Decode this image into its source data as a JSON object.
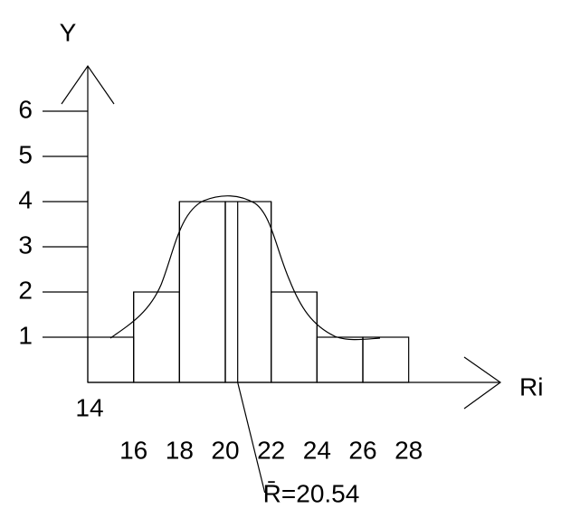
{
  "chart_data": {
    "type": "histogram",
    "bins": [
      14,
      16,
      18,
      20,
      22,
      24,
      26,
      28
    ],
    "values": [
      1,
      2,
      4,
      4,
      2,
      1,
      1
    ],
    "xlim": [
      14,
      32
    ],
    "ylim": [
      0,
      7
    ],
    "xticks": [
      14,
      16,
      18,
      20,
      22,
      24,
      26,
      28
    ],
    "yticks": [
      1,
      2,
      3,
      4,
      5,
      6
    ],
    "xlabel": "Ri",
    "ylabel": "Y",
    "mean_line": {
      "value": 20.54,
      "label": "R̄=20.54"
    },
    "color": "#000000"
  }
}
